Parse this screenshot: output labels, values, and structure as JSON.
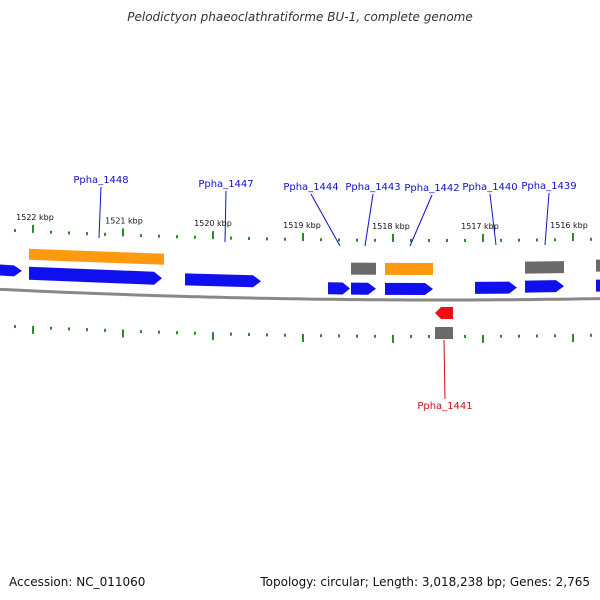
{
  "header": {
    "title": "Pelodictyon phaeoclathratiforme BU-1, complete genome"
  },
  "footer": {
    "accession": "Accession: NC_011060",
    "summary": "Topology: circular; Length: 3,018,238 bp; Genes: 2,765"
  },
  "colors": {
    "cds": "#1010ee",
    "cds_highlight": "#ff9a10",
    "gene_other": "#6a6a6a",
    "gene_reverse_highlight": "#ee1010",
    "tick": "#2a8a2a",
    "label_forward": "#1010cc",
    "label_reverse": "#cc1010",
    "backbone": "#888888"
  },
  "scale_labels": [
    "1522 kbp",
    "1521 kbp",
    "1520 kbp",
    "1519 kbp",
    "1518 kbp",
    "1517 kbp",
    "1516 kbp"
  ],
  "gene_labels": [
    {
      "text": "Ppha_1448",
      "strand": "forward"
    },
    {
      "text": "Ppha_1447",
      "strand": "forward"
    },
    {
      "text": "Ppha_1444",
      "strand": "forward"
    },
    {
      "text": "Ppha_1443",
      "strand": "forward"
    },
    {
      "text": "Ppha_1442",
      "strand": "forward"
    },
    {
      "text": "Ppha_1440",
      "strand": "forward"
    },
    {
      "text": "Ppha_1439",
      "strand": "forward"
    },
    {
      "text": "Ppha_1441",
      "strand": "reverse"
    }
  ]
}
